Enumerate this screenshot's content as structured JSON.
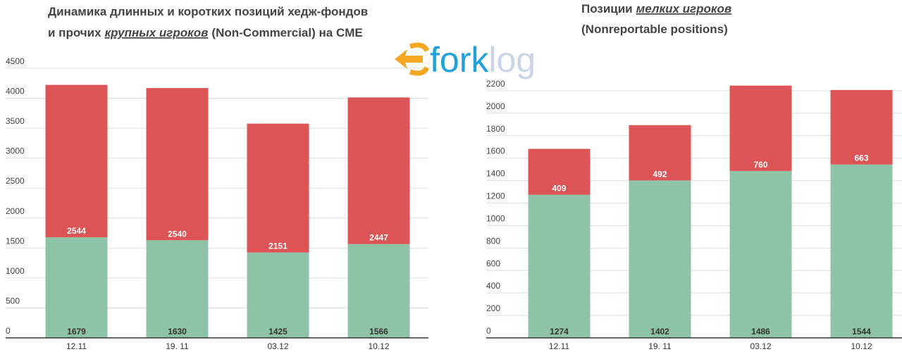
{
  "logo": [
    "fork",
    "log"
  ],
  "chart_data": [
    {
      "type": "stacked_bar",
      "title": [
        [
          "Динамика длинных и коротких позиций хедж-фондов"
        ],
        [
          "и прочих",
          "крупных игроков",
          "(Non-Commercial) на CME"
        ]
      ],
      "title_emphasis": [
        1,
        1
      ],
      "categories": [
        "12.11",
        "19. 11",
        "03.12",
        "10.12"
      ],
      "series": [
        {
          "color": "#8fc3a7",
          "values": [
            1679,
            1630,
            1425,
            1566
          ]
        },
        {
          "color": "#dc5456",
          "values": [
            2544,
            2540,
            2151,
            2447
          ]
        }
      ],
      "ylim": [
        0,
        4500
      ],
      "yticks": [
        0,
        500,
        1000,
        1500,
        2000,
        2500,
        3000,
        3500,
        4000,
        4500
      ],
      "grid": true
    },
    {
      "type": "stacked_bar",
      "title": [
        [
          "Позиции",
          "мелких игроков"
        ],
        [
          "(Nonreportable positions)"
        ]
      ],
      "title_emphasis": [
        0,
        1
      ],
      "categories": [
        "12.11",
        "19. 11",
        "03.12",
        "10.12"
      ],
      "series": [
        {
          "color": "#8fc3a7",
          "values": [
            1274,
            1402,
            1486,
            1544
          ]
        },
        {
          "color": "#dc5456",
          "values": [
            409,
            492,
            760,
            663
          ]
        }
      ],
      "ylim": [
        0,
        2250
      ],
      "yticks": [
        0,
        200,
        400,
        600,
        800,
        1000,
        1200,
        1400,
        1600,
        1800,
        2000,
        2200
      ],
      "grid": true
    }
  ]
}
